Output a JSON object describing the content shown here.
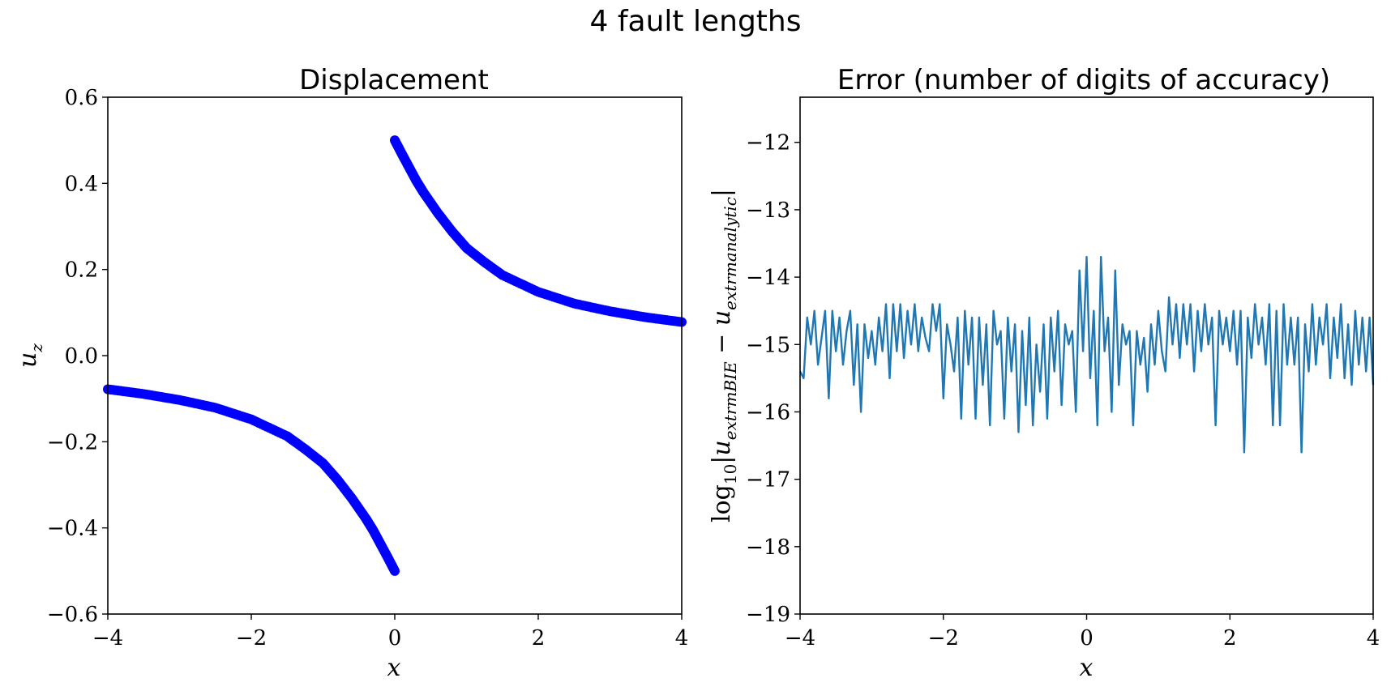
{
  "suptitle": "4 fault lengths",
  "chart_data": [
    {
      "type": "scatter",
      "title": "Displacement",
      "xlabel": "x",
      "ylabel": "u_z",
      "xlim": [
        -4,
        4
      ],
      "ylim": [
        -0.6,
        0.6
      ],
      "xticks": [
        -4,
        -2,
        0,
        2,
        4
      ],
      "xtick_labels": [
        "−4",
        "−2",
        "0",
        "2",
        "4"
      ],
      "yticks": [
        -0.6,
        -0.4,
        -0.2,
        0.0,
        0.2,
        0.4,
        0.6
      ],
      "ytick_labels": [
        "−0.6",
        "−0.4",
        "−0.2",
        "0.0",
        "0.2",
        "0.4",
        "0.6"
      ],
      "grid": false,
      "marker_color": "#0000ff",
      "series": [
        {
          "x": [
            -4.0,
            -3.5,
            -3.0,
            -2.5,
            -2.0,
            -1.5,
            -1.25,
            -1.0,
            -0.8,
            -0.6,
            -0.4,
            -0.3,
            -0.2,
            -0.1,
            0.0,
            0.0,
            0.1,
            0.2,
            0.3,
            0.4,
            0.6,
            0.8,
            1.0,
            1.25,
            1.5,
            2.0,
            2.5,
            3.0,
            3.5,
            4.0
          ],
          "y": [
            -0.078,
            -0.089,
            -0.103,
            -0.121,
            -0.148,
            -0.187,
            -0.217,
            -0.25,
            -0.288,
            -0.331,
            -0.379,
            -0.406,
            -0.437,
            -0.468,
            -0.5,
            0.5,
            0.468,
            0.437,
            0.406,
            0.379,
            0.331,
            0.288,
            0.25,
            0.217,
            0.187,
            0.148,
            0.121,
            0.103,
            0.089,
            0.078
          ]
        }
      ]
    },
    {
      "type": "line",
      "title": "Error (number of digits of accuracy)",
      "xlabel": "x",
      "ylabel": "log10 |u_BIE − u_analytic|",
      "ylabel_tex": "\\log_{10}|u_{\\extrm{BIE}} - u_{\\extrm{analytic}}|",
      "ylabel_display": {
        "prefix": "log",
        "subscript": "10",
        "body": "|u",
        "sub1": "extrmBIE",
        "minus": " − u",
        "sub2": "extrmanalytic",
        "close": "|"
      },
      "xlim": [
        -4,
        4
      ],
      "ylim": [
        -19,
        -11.33
      ],
      "xticks": [
        -4,
        -2,
        0,
        2,
        4
      ],
      "xtick_labels": [
        "−4",
        "−2",
        "0",
        "2",
        "4"
      ],
      "yticks": [
        -19,
        -18,
        -17,
        -16,
        -15,
        -14,
        -13,
        -12
      ],
      "ytick_labels": [
        "−19",
        "−18",
        "−17",
        "−16",
        "−15",
        "−14",
        "−13",
        "−12"
      ],
      "grid": false,
      "line_color": "#1f77b4",
      "series": [
        {
          "x": [
            -4.0,
            -3.95,
            -3.9,
            -3.85,
            -3.8,
            -3.75,
            -3.7,
            -3.65,
            -3.6,
            -3.55,
            -3.5,
            -3.45,
            -3.4,
            -3.35,
            -3.3,
            -3.25,
            -3.2,
            -3.15,
            -3.1,
            -3.05,
            -3.0,
            -2.95,
            -2.9,
            -2.85,
            -2.8,
            -2.75,
            -2.7,
            -2.65,
            -2.6,
            -2.55,
            -2.5,
            -2.45,
            -2.4,
            -2.35,
            -2.3,
            -2.25,
            -2.2,
            -2.15,
            -2.1,
            -2.05,
            -2.0,
            -1.95,
            -1.9,
            -1.85,
            -1.8,
            -1.75,
            -1.7,
            -1.65,
            -1.6,
            -1.55,
            -1.5,
            -1.45,
            -1.4,
            -1.35,
            -1.3,
            -1.25,
            -1.2,
            -1.15,
            -1.1,
            -1.05,
            -1.0,
            -0.95,
            -0.9,
            -0.85,
            -0.8,
            -0.75,
            -0.7,
            -0.65,
            -0.6,
            -0.55,
            -0.5,
            -0.45,
            -0.4,
            -0.35,
            -0.3,
            -0.25,
            -0.2,
            -0.15,
            -0.1,
            -0.05,
            0.0,
            0.05,
            0.1,
            0.15,
            0.2,
            0.25,
            0.3,
            0.35,
            0.4,
            0.45,
            0.5,
            0.55,
            0.6,
            0.65,
            0.7,
            0.75,
            0.8,
            0.85,
            0.9,
            0.95,
            1.0,
            1.05,
            1.1,
            1.15,
            1.2,
            1.25,
            1.3,
            1.35,
            1.4,
            1.45,
            1.5,
            1.55,
            1.6,
            1.65,
            1.7,
            1.75,
            1.8,
            1.85,
            1.9,
            1.95,
            2.0,
            2.05,
            2.1,
            2.15,
            2.2,
            2.25,
            2.3,
            2.35,
            2.4,
            2.45,
            2.5,
            2.55,
            2.6,
            2.65,
            2.7,
            2.75,
            2.8,
            2.85,
            2.9,
            2.95,
            3.0,
            3.05,
            3.1,
            3.15,
            3.2,
            3.25,
            3.3,
            3.35,
            3.4,
            3.45,
            3.5,
            3.55,
            3.6,
            3.65,
            3.7,
            3.75,
            3.8,
            3.85,
            3.9,
            3.95,
            4.0
          ],
          "y": [
            -15.4,
            -15.5,
            -14.6,
            -15.0,
            -14.5,
            -15.3,
            -14.9,
            -14.5,
            -15.8,
            -14.5,
            -15.1,
            -14.6,
            -15.3,
            -14.8,
            -14.5,
            -15.6,
            -14.7,
            -16.0,
            -14.7,
            -15.2,
            -14.8,
            -15.3,
            -14.6,
            -15.1,
            -14.4,
            -15.5,
            -14.4,
            -15.1,
            -14.4,
            -15.2,
            -14.5,
            -15.0,
            -14.4,
            -15.1,
            -14.6,
            -14.9,
            -15.1,
            -14.4,
            -14.8,
            -14.4,
            -15.8,
            -14.7,
            -15.0,
            -15.4,
            -14.6,
            -16.1,
            -14.5,
            -15.3,
            -14.6,
            -16.1,
            -14.6,
            -15.6,
            -14.7,
            -16.2,
            -14.5,
            -15.0,
            -14.8,
            -16.1,
            -14.6,
            -15.4,
            -14.7,
            -16.3,
            -14.8,
            -15.9,
            -14.6,
            -16.2,
            -15.0,
            -15.7,
            -14.7,
            -16.1,
            -14.6,
            -15.4,
            -14.5,
            -15.9,
            -14.7,
            -15.0,
            -14.8,
            -16.0,
            -13.9,
            -15.1,
            -13.7,
            -15.5,
            -14.5,
            -16.2,
            -13.7,
            -15.1,
            -14.6,
            -16.0,
            -13.9,
            -15.6,
            -14.7,
            -15.0,
            -14.8,
            -16.2,
            -14.8,
            -15.3,
            -14.9,
            -15.7,
            -14.7,
            -15.3,
            -14.5,
            -15.1,
            -15.4,
            -14.3,
            -15.0,
            -14.4,
            -15.2,
            -14.4,
            -15.0,
            -14.4,
            -15.4,
            -14.5,
            -15.1,
            -14.4,
            -15.0,
            -14.6,
            -16.2,
            -14.5,
            -15.0,
            -14.6,
            -15.1,
            -14.5,
            -15.3,
            -14.5,
            -16.6,
            -14.6,
            -15.2,
            -14.4,
            -15.0,
            -14.6,
            -15.3,
            -14.4,
            -16.2,
            -14.5,
            -16.2,
            -14.4,
            -15.3,
            -14.6,
            -15.3,
            -14.6,
            -16.6,
            -14.7,
            -15.4,
            -14.4,
            -15.3,
            -14.6,
            -15.0,
            -14.4,
            -15.5,
            -14.6,
            -15.2,
            -14.4,
            -15.5,
            -14.7,
            -15.6,
            -14.5,
            -15.3,
            -14.6,
            -15.4,
            -14.6,
            -15.6
          ]
        }
      ]
    }
  ]
}
